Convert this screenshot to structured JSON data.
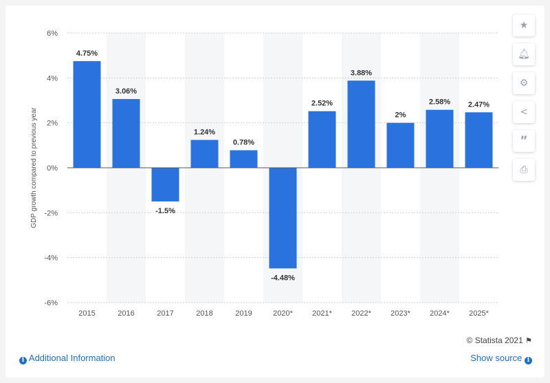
{
  "chart_data": {
    "type": "bar",
    "categories": [
      "2015",
      "2016",
      "2017",
      "2018",
      "2019",
      "2020*",
      "2021*",
      "2022*",
      "2023*",
      "2024*",
      "2025*"
    ],
    "values": [
      4.75,
      3.06,
      -1.5,
      1.24,
      0.78,
      -4.48,
      2.52,
      3.88,
      2,
      2.58,
      2.47
    ],
    "data_labels": [
      "4.75%",
      "3.06%",
      "-1.5%",
      "1.24%",
      "0.78%",
      "-4.48%",
      "2.52%",
      "3.88%",
      "2%",
      "2.58%",
      "2.47%"
    ],
    "ylabel": "GDP growth compared to previous year",
    "xlabel": "",
    "ylim": [
      -6,
      6
    ],
    "yticks": [
      6,
      4,
      2,
      0,
      -2,
      -4,
      -6
    ],
    "ytick_labels": [
      "6%",
      "4%",
      "2%",
      "0%",
      "-2%",
      "-4%",
      "-6%"
    ],
    "bar_color": "#2a72dd",
    "grid": true
  },
  "sidebar": {
    "icons": [
      "star-icon",
      "bell-icon",
      "gear-icon",
      "share-icon",
      "quote-icon",
      "print-icon"
    ]
  },
  "footer": {
    "credit": "© Statista 2021",
    "additional_info": "Additional Information",
    "show_source": "Show source"
  }
}
